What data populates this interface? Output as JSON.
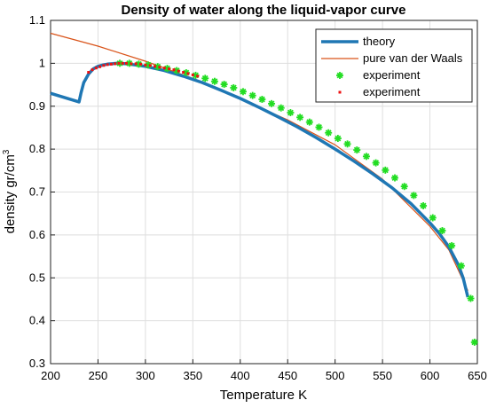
{
  "chart_data": {
    "type": "line",
    "title": "Density of water along the liquid-vapor curve",
    "xlabel": "Temperature K",
    "ylabel": "density gr/cm",
    "ylabel_sup": "3",
    "xlim": [
      200,
      650
    ],
    "ylim": [
      0.3,
      1.1
    ],
    "xticks": [
      200,
      250,
      300,
      350,
      400,
      450,
      500,
      550,
      600,
      650
    ],
    "yticks": [
      0.3,
      0.4,
      0.5,
      0.6,
      0.7,
      0.8,
      0.9,
      1,
      1.1
    ],
    "xtick_labels": [
      "200",
      "250",
      "300",
      "350",
      "400",
      "450",
      "500",
      "550",
      "600",
      "650"
    ],
    "ytick_labels": [
      "0.3",
      "0.4",
      "0.5",
      "0.6",
      "0.7",
      "0.8",
      "0.9",
      "1",
      "1.1"
    ],
    "grid": true,
    "legend_position": "top-right",
    "series": [
      {
        "name": "theory",
        "style": "line",
        "color": "#1f77b4",
        "x": [
          200,
          215,
          230,
          232,
          235,
          240,
          245,
          250,
          255,
          260,
          270,
          280,
          290,
          300,
          320,
          340,
          360,
          380,
          400,
          420,
          440,
          460,
          480,
          500,
          520,
          540,
          560,
          580,
          600,
          610,
          620,
          630,
          635,
          640
        ],
        "y": [
          0.93,
          0.92,
          0.91,
          0.93,
          0.955,
          0.975,
          0.987,
          0.993,
          0.996,
          0.998,
          1.0,
          0.999,
          0.996,
          0.993,
          0.983,
          0.97,
          0.955,
          0.937,
          0.918,
          0.897,
          0.875,
          0.852,
          0.827,
          0.8,
          0.772,
          0.742,
          0.71,
          0.673,
          0.628,
          0.603,
          0.572,
          0.53,
          0.5,
          0.455
        ]
      },
      {
        "name": "pure van der Waals",
        "style": "line",
        "color": "#d95319",
        "x": [
          200,
          250,
          300,
          350,
          400,
          450,
          500,
          550,
          600,
          620,
          640
        ],
        "y": [
          1.07,
          1.04,
          1.005,
          0.965,
          0.917,
          0.868,
          0.81,
          0.73,
          0.62,
          0.565,
          0.47
        ]
      },
      {
        "name": "experiment",
        "style": "asterisk",
        "color": "#22dd22",
        "x": [
          273,
          283,
          293,
          303,
          313,
          323,
          333,
          343,
          353,
          363,
          373,
          383,
          393,
          403,
          413,
          423,
          433,
          443,
          453,
          463,
          473,
          483,
          493,
          503,
          513,
          523,
          533,
          543,
          553,
          563,
          573,
          583,
          593,
          603,
          613,
          623,
          633,
          643,
          647
        ],
        "y": [
          1.0,
          1.0,
          0.998,
          0.996,
          0.992,
          0.988,
          0.983,
          0.978,
          0.972,
          0.965,
          0.958,
          0.951,
          0.943,
          0.934,
          0.925,
          0.916,
          0.906,
          0.896,
          0.885,
          0.874,
          0.863,
          0.851,
          0.838,
          0.825,
          0.812,
          0.798,
          0.783,
          0.768,
          0.751,
          0.733,
          0.713,
          0.692,
          0.668,
          0.64,
          0.61,
          0.575,
          0.528,
          0.452,
          0.35
        ]
      },
      {
        "name": "experiment",
        "style": "dot",
        "color": "#ee1111",
        "x": [
          240,
          244,
          248,
          252,
          256,
          260,
          264,
          268,
          272,
          276,
          280,
          285,
          290,
          295,
          300,
          305,
          310,
          315,
          320,
          325,
          330,
          335,
          340,
          345,
          350,
          355
        ],
        "y": [
          0.979,
          0.985,
          0.989,
          0.992,
          0.995,
          0.997,
          0.998,
          0.999,
          1.0,
          1.0,
          1.0,
          0.999,
          0.999,
          0.998,
          0.996,
          0.995,
          0.993,
          0.991,
          0.989,
          0.987,
          0.985,
          0.982,
          0.979,
          0.976,
          0.973,
          0.97
        ]
      }
    ]
  }
}
